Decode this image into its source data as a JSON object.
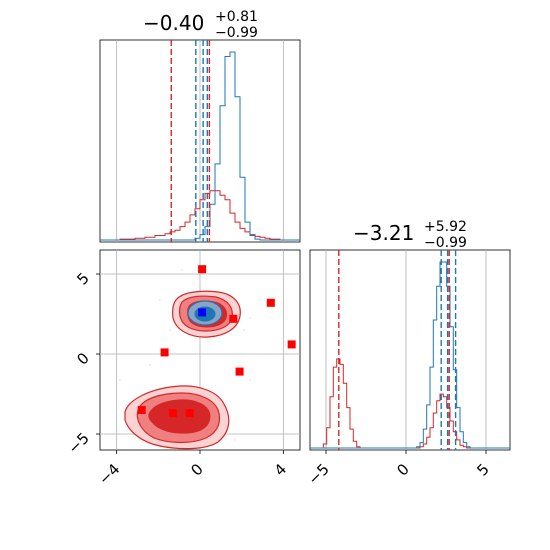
{
  "chart_data": {
    "type": "corner",
    "colors": {
      "red": "#d62728",
      "red_bright": "#ff0000",
      "blue": "#1f77b4",
      "marker_blue": "#0000ff",
      "grid": "#b0b0b0",
      "fill_dark": "#d62728",
      "fill_mid": "#f08080",
      "fill_light": "#fbd3d3"
    },
    "parameters": [
      {
        "title_value": "−0.40",
        "title_plus": "+0.81",
        "title_minus": "−0.99",
        "range": [
          -4.8,
          4.8
        ],
        "ticks": [
          -4,
          0,
          4
        ],
        "tick_labels": [
          "−4",
          "0",
          "4"
        ],
        "red_quantiles": [
          -1.38,
          0.45
        ],
        "blue_quantiles": [
          -0.2,
          0.15,
          0.35
        ]
      },
      {
        "title_value": "−3.21",
        "title_plus": "+5.92",
        "title_minus": "−0.99",
        "range": [
          -6.0,
          6.5
        ],
        "ticks": [
          -5,
          0,
          5
        ],
        "tick_labels": [
          "−5",
          "0",
          "5"
        ],
        "red_quantiles": [
          -4.2,
          2.7
        ],
        "blue_quantiles": [
          2.2,
          2.6,
          3.1
        ]
      }
    ],
    "scatter_markers_red": [
      {
        "x": 0.1,
        "y": 5.3
      },
      {
        "x": 3.4,
        "y": 3.2
      },
      {
        "x": 1.6,
        "y": 2.2
      },
      {
        "x": 4.4,
        "y": 0.6
      },
      {
        "x": -1.7,
        "y": 0.1
      },
      {
        "x": 1.9,
        "y": -1.1
      },
      {
        "x": -2.8,
        "y": -3.5
      },
      {
        "x": -1.3,
        "y": -3.7
      },
      {
        "x": -0.5,
        "y": -3.7
      }
    ],
    "scatter_marker_blue": {
      "x": 0.1,
      "y": 2.6
    },
    "hist1_red": [
      0,
      0,
      0,
      0,
      1,
      1,
      1,
      2,
      2,
      3,
      3,
      5,
      5,
      7,
      9,
      11,
      15,
      20,
      28,
      35,
      45,
      52,
      55,
      55,
      50,
      45,
      30,
      20,
      13,
      9,
      6,
      4,
      3,
      2,
      1,
      1,
      0,
      0,
      0,
      0
    ],
    "hist1_blue": [
      0,
      0,
      0,
      0,
      0,
      0,
      0,
      0,
      0,
      0,
      0,
      0,
      0,
      0,
      0,
      0,
      0,
      0,
      0,
      2,
      6,
      15,
      40,
      85,
      150,
      205,
      210,
      160,
      70,
      20,
      5,
      1,
      0,
      0,
      0,
      0,
      0,
      0,
      0,
      0
    ],
    "hist2_red": [
      0,
      0,
      0,
      0,
      3,
      15,
      38,
      60,
      66,
      62,
      48,
      30,
      14,
      5,
      1,
      0,
      0,
      0,
      0,
      0,
      0,
      0,
      0,
      0,
      0,
      0,
      0,
      0,
      0,
      0,
      0,
      0,
      0,
      1,
      3,
      8,
      15,
      26,
      35,
      40,
      38,
      30,
      20,
      12,
      6,
      2,
      1,
      0,
      0,
      0,
      0,
      0,
      0,
      0,
      0,
      0,
      0,
      0,
      0,
      0
    ],
    "hist2_blue": [
      0,
      0,
      0,
      0,
      0,
      0,
      0,
      0,
      0,
      0,
      0,
      0,
      0,
      0,
      0,
      0,
      0,
      0,
      0,
      0,
      0,
      0,
      0,
      0,
      0,
      0,
      0,
      0,
      0,
      0,
      0,
      0,
      1,
      4,
      14,
      32,
      60,
      95,
      120,
      138,
      138,
      120,
      90,
      58,
      30,
      12,
      4,
      1,
      0,
      0,
      0,
      0,
      0,
      0,
      0,
      0,
      0,
      0,
      0,
      0
    ]
  }
}
